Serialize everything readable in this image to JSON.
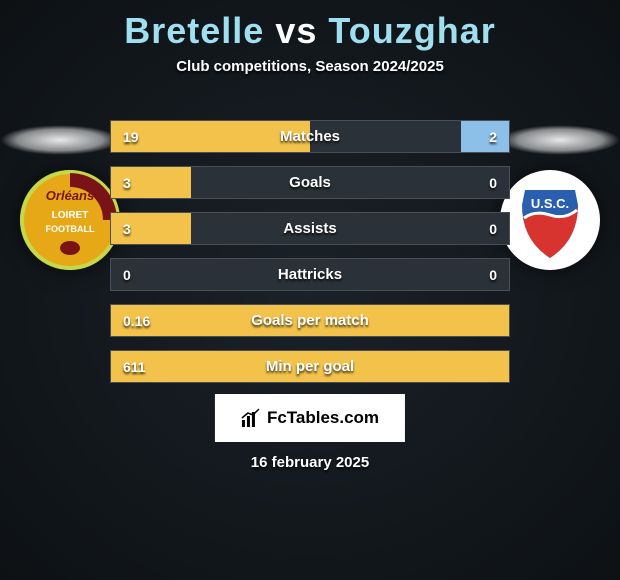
{
  "title": {
    "player1": "Bretelle",
    "vs": "vs",
    "player2": "Touzghar",
    "color1": "#9fdff0",
    "color_vs": "#ffffff",
    "color2": "#9fdff0"
  },
  "subtitle": "Club competitions, Season 2024/2025",
  "colors": {
    "bar_left": "#f3c24a",
    "bar_right": "#8cc0e8",
    "track": "#2a3138"
  },
  "club_left": {
    "bg": "#e6a817",
    "ring": "#c3d94a",
    "text_top": "Orléans",
    "text_mid": "LOIRET",
    "text_bot": "FOOTBALL"
  },
  "club_right": {
    "bg": "#ffffff",
    "shield_top": "#2a5fb0",
    "shield_bot": "#d8342f",
    "letters": "U.S.C."
  },
  "stats": [
    {
      "label": "Matches",
      "left_val": "19",
      "right_val": "2",
      "left_pct": 50,
      "right_pct": 12,
      "show_right_bar": true
    },
    {
      "label": "Goals",
      "left_val": "3",
      "right_val": "0",
      "left_pct": 20,
      "right_pct": 0,
      "show_right_bar": false
    },
    {
      "label": "Assists",
      "left_val": "3",
      "right_val": "0",
      "left_pct": 20,
      "right_pct": 0,
      "show_right_bar": false
    },
    {
      "label": "Hattricks",
      "left_val": "0",
      "right_val": "0",
      "left_pct": 0,
      "right_pct": 0,
      "show_right_bar": false
    },
    {
      "label": "Goals per match",
      "left_val": "0.16",
      "right_val": "",
      "left_pct": 100,
      "right_pct": 0,
      "show_right_bar": false
    },
    {
      "label": "Min per goal",
      "left_val": "611",
      "right_val": "",
      "left_pct": 100,
      "right_pct": 0,
      "show_right_bar": false
    }
  ],
  "footer": {
    "brand": "FcTables.com",
    "date": "16 february 2025"
  }
}
